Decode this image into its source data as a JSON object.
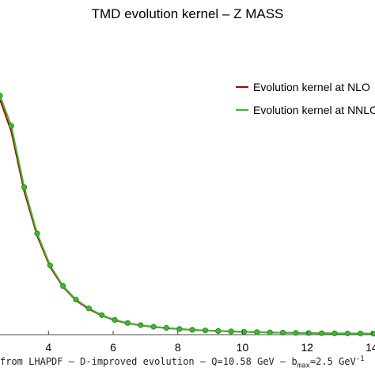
{
  "chart_data": {
    "type": "line",
    "title": "TMD evolution kernel – Z MASS",
    "xlabel": "",
    "ylabel": "",
    "xlim": [
      2.5,
      14.1
    ],
    "x_ticks": [
      4,
      6,
      8,
      10,
      12,
      14
    ],
    "x_tick_labels": [
      "4",
      "6",
      "8",
      "10",
      "12",
      "14"
    ],
    "grid": false,
    "legend_position": "top-right",
    "series": [
      {
        "name": "Evolution kernel at NLO",
        "color": "#b00000",
        "x": [
          2.5,
          2.85,
          3.25,
          3.65,
          4.05,
          4.45,
          4.85,
          5.25,
          5.65,
          6.05,
          6.45,
          6.85,
          7.25,
          7.65,
          8.05,
          8.45,
          8.85,
          9.25,
          9.65,
          10.05,
          10.45,
          10.85,
          11.25,
          11.65,
          12.05,
          12.45,
          12.85,
          13.25,
          13.65,
          14.05
        ],
        "y": [
          0.295,
          0.255,
          0.18,
          0.124,
          0.085,
          0.06,
          0.043,
          0.032,
          0.024,
          0.018,
          0.0143,
          0.0117,
          0.0097,
          0.0082,
          0.007,
          0.006,
          0.0052,
          0.0046,
          0.004,
          0.0035,
          0.0031,
          0.0027,
          0.0024,
          0.0022,
          0.002,
          0.0018,
          0.0016,
          0.0015,
          0.0014,
          0.0013
        ]
      },
      {
        "name": "Evolution kernel at NNLO",
        "color": "#3cb82e",
        "x": [
          2.5,
          2.85,
          3.25,
          3.65,
          4.05,
          4.45,
          4.85,
          5.25,
          5.65,
          6.05,
          6.45,
          6.85,
          7.25,
          7.65,
          8.05,
          8.45,
          8.85,
          9.25,
          9.65,
          10.05,
          10.45,
          10.85,
          11.25,
          11.65,
          12.05,
          12.45,
          12.85,
          13.25,
          13.65,
          14.05
        ],
        "y": [
          0.3,
          0.262,
          0.185,
          0.127,
          0.087,
          0.061,
          0.044,
          0.033,
          0.0245,
          0.0185,
          0.0146,
          0.0119,
          0.0099,
          0.0084,
          0.0071,
          0.0061,
          0.0053,
          0.0046,
          0.0041,
          0.0036,
          0.0031,
          0.0028,
          0.0025,
          0.0022,
          0.002,
          0.0018,
          0.0016,
          0.0015,
          0.0014,
          0.0013
        ]
      }
    ]
  },
  "caption": {
    "prefix": "from LHAPDF – D-improved evolution – Q=10.58 GeV – b",
    "sub": "max",
    "middle": "=2.5 GeV",
    "sup": "-1"
  }
}
